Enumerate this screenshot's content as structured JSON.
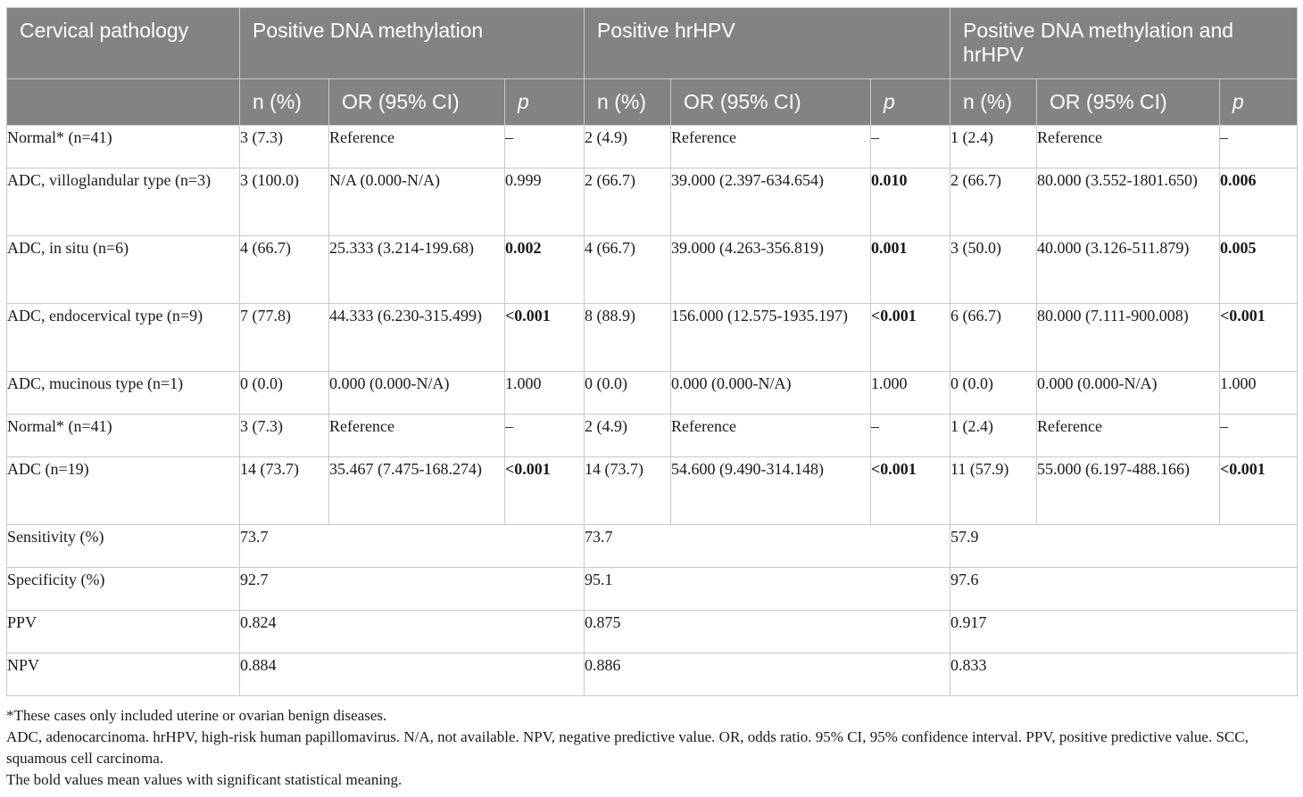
{
  "header": {
    "col1": "Cervical pathology",
    "groups": [
      "Positive DNA methylation",
      "Positive hrHPV",
      "Positive DNA methylation and hrHPV"
    ],
    "sub": {
      "n": "n (%)",
      "or": "OR (95% CI)",
      "p": "p"
    }
  },
  "rows": [
    {
      "label": "Normal* (n=41)",
      "cells": [
        "3 (7.3)",
        "Reference",
        "–",
        "2 (4.9)",
        "Reference",
        "–",
        "1 (2.4)",
        "Reference",
        "–"
      ],
      "bold": []
    },
    {
      "label": "ADC, villoglandular type (n=3)",
      "cells": [
        "3 (100.0)",
        "N/A (0.000-N/A)",
        "0.999",
        "2 (66.7)",
        "39.000 (2.397-634.654)",
        "0.010",
        "2 (66.7)",
        "80.000 (3.552-1801.650)",
        "0.006"
      ],
      "bold": [
        5,
        8
      ]
    },
    {
      "label": "ADC, in situ (n=6)",
      "cells": [
        "4 (66.7)",
        "25.333 (3.214-199.68)",
        "0.002",
        "4 (66.7)",
        "39.000 (4.263-356.819)",
        "0.001",
        "3 (50.0)",
        "40.000 (3.126-511.879)",
        "0.005"
      ],
      "bold": [
        2,
        5,
        8
      ]
    },
    {
      "label": "ADC, endocervical type (n=9)",
      "cells": [
        "7 (77.8)",
        "44.333 (6.230-315.499)",
        "<0.001",
        "8 (88.9)",
        "156.000 (12.575-1935.197)",
        "<0.001",
        "6 (66.7)",
        "80.000 (7.111-900.008)",
        "<0.001"
      ],
      "bold": [
        2,
        5,
        8
      ]
    },
    {
      "label": "ADC, mucinous type (n=1)",
      "cells": [
        "0 (0.0)",
        "0.000 (0.000-N/A)",
        "1.000",
        "0 (0.0)",
        "0.000 (0.000-N/A)",
        "1.000",
        "0 (0.0)",
        "0.000 (0.000-N/A)",
        "1.000"
      ],
      "bold": []
    },
    {
      "label": "Normal* (n=41)",
      "cells": [
        "3 (7.3)",
        "Reference",
        "–",
        "2 (4.9)",
        "Reference",
        "–",
        "1 (2.4)",
        "Reference",
        "–"
      ],
      "bold": []
    },
    {
      "label": "ADC (n=19)",
      "cells": [
        "14 (73.7)",
        "35.467 (7.475-168.274)",
        "<0.001",
        "14 (73.7)",
        "54.600 (9.490-314.148)",
        "<0.001",
        "11 (57.9)",
        "55.000 (6.197-488.166)",
        "<0.001"
      ],
      "bold": [
        2,
        5,
        8
      ]
    }
  ],
  "metrics": [
    {
      "label": "Sensitivity (%)",
      "values": [
        "73.7",
        "73.7",
        "57.9"
      ]
    },
    {
      "label": "Specificity (%)",
      "values": [
        "92.7",
        "95.1",
        "97.6"
      ]
    },
    {
      "label": "PPV",
      "values": [
        "0.824",
        "0.875",
        "0.917"
      ]
    },
    {
      "label": "NPV",
      "values": [
        "0.884",
        "0.886",
        "0.833"
      ]
    }
  ],
  "notes": [
    "*These cases only included uterine or ovarian benign diseases.",
    "ADC, adenocarcinoma. hrHPV, high-risk human papillomavirus. N/A, not available. NPV, negative predictive value. OR, odds ratio. 95% CI, 95% confidence interval. PPV, positive predictive value. SCC, squamous cell carcinoma.",
    "The bold values mean values with significant statistical meaning."
  ]
}
